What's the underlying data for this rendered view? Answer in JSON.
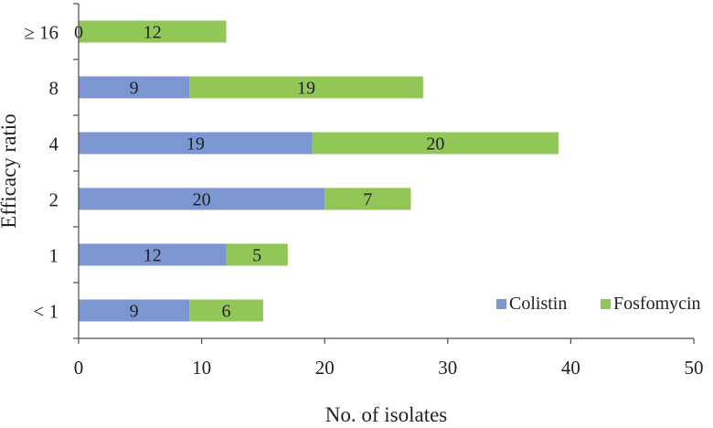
{
  "chart_data": {
    "type": "bar",
    "orientation": "horizontal",
    "stacked": true,
    "title": "",
    "xlabel": "No. of isolates",
    "ylabel": "Efficacy ratio",
    "categories": [
      "< 1",
      "1",
      "2",
      "4",
      "8",
      "≥ 16"
    ],
    "xlim": [
      0,
      50
    ],
    "x_ticks": [
      0,
      10,
      20,
      30,
      40,
      50
    ],
    "grid": false,
    "legend_position": "bottom-right",
    "series": [
      {
        "name": "Colistin",
        "color": "#7b96d0",
        "values": [
          9,
          12,
          20,
          19,
          9,
          0
        ]
      },
      {
        "name": "Fosfomycin",
        "color": "#92c757",
        "values": [
          6,
          5,
          7,
          20,
          19,
          12
        ]
      }
    ]
  }
}
